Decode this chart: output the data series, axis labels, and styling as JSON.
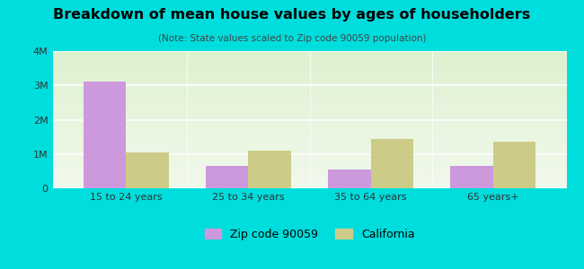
{
  "title": "Breakdown of mean house values by ages of householders",
  "subtitle": "(Note: State values scaled to Zip code 90059 population)",
  "categories": [
    "15 to 24 years",
    "25 to 34 years",
    "35 to 64 years",
    "65 years+"
  ],
  "zip_values": [
    3100000,
    650000,
    550000,
    650000
  ],
  "ca_values": [
    1050000,
    1100000,
    1450000,
    1350000
  ],
  "zip_color": "#cc99dd",
  "ca_color": "#cccc88",
  "bg_color": "#00dddd",
  "ylim": [
    0,
    4000000
  ],
  "yticks": [
    0,
    1000000,
    2000000,
    3000000,
    4000000
  ],
  "ytick_labels": [
    "0",
    "1M",
    "2M",
    "3M",
    "4M"
  ],
  "legend_zip": "Zip code 90059",
  "legend_ca": "California",
  "bar_width": 0.35
}
